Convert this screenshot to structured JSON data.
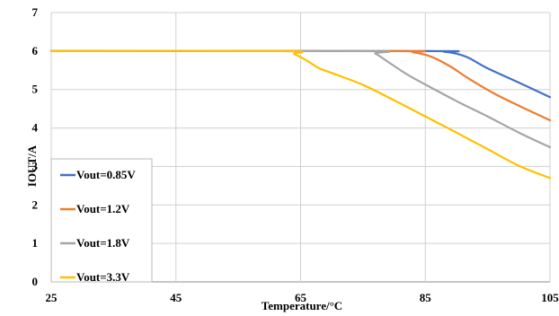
{
  "chart_data": {
    "type": "line",
    "title": "",
    "xlabel": "Temperature/°C",
    "ylabel": "IOUT/A",
    "xlim": [
      25,
      105
    ],
    "ylim": [
      0,
      7
    ],
    "xticks": [
      25,
      45,
      65,
      85,
      105
    ],
    "yticks": [
      0,
      1,
      2,
      3,
      4,
      5,
      6,
      7
    ],
    "grid": true,
    "legend": "bottom-left",
    "series": [
      {
        "name": "Vout=0.85V",
        "color": "#4472C4",
        "points": [
          [
            25,
            6
          ],
          [
            85,
            6
          ],
          [
            88,
            5.98
          ],
          [
            90,
            5.93
          ],
          [
            92,
            5.82
          ],
          [
            95,
            5.55
          ],
          [
            100,
            5.18
          ],
          [
            105,
            4.8
          ]
        ]
      },
      {
        "name": "Vout=1.2V",
        "color": "#ED7D31",
        "points": [
          [
            25,
            6
          ],
          [
            80,
            6
          ],
          [
            83,
            5.97
          ],
          [
            86,
            5.85
          ],
          [
            89,
            5.6
          ],
          [
            92,
            5.28
          ],
          [
            96,
            4.9
          ],
          [
            100,
            4.58
          ],
          [
            105,
            4.2
          ]
        ]
      },
      {
        "name": "Vout=1.8V",
        "color": "#A5A5A5",
        "points": [
          [
            25,
            6
          ],
          [
            75,
            6
          ],
          [
            77,
            5.93
          ],
          [
            79,
            5.72
          ],
          [
            82,
            5.4
          ],
          [
            85,
            5.13
          ],
          [
            90,
            4.7
          ],
          [
            95,
            4.3
          ],
          [
            100,
            3.88
          ],
          [
            105,
            3.5
          ]
        ]
      },
      {
        "name": "Vout=3.3V",
        "color": "#FFC000",
        "points": [
          [
            25,
            6
          ],
          [
            62,
            6
          ],
          [
            64,
            5.92
          ],
          [
            66,
            5.75
          ],
          [
            68,
            5.55
          ],
          [
            70,
            5.43
          ],
          [
            75,
            5.12
          ],
          [
            80,
            4.72
          ],
          [
            85,
            4.3
          ],
          [
            90,
            3.88
          ],
          [
            95,
            3.45
          ],
          [
            100,
            3.02
          ],
          [
            105,
            2.7
          ]
        ]
      }
    ]
  }
}
